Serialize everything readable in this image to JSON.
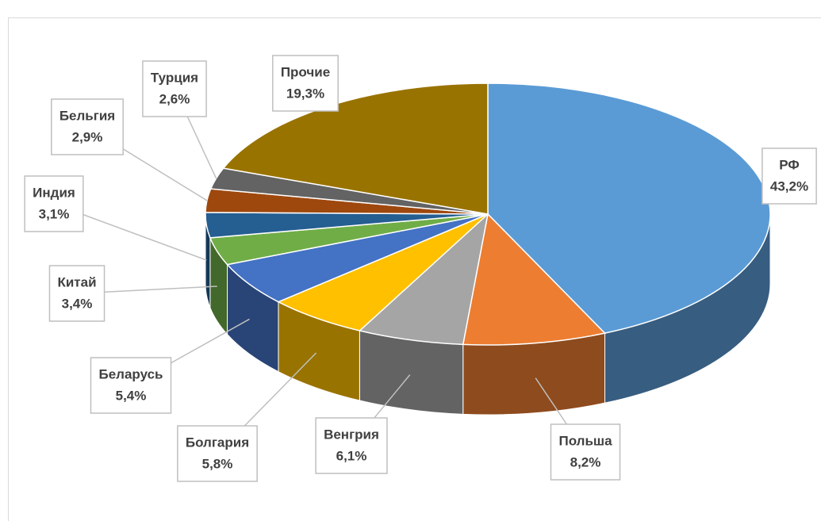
{
  "chart_data": {
    "type": "pie",
    "categories": [
      "РФ",
      "Польша",
      "Венгрия",
      "Болгария",
      "Беларусь",
      "Китай",
      "Индия",
      "Бельгия",
      "Турция",
      "Прочие"
    ],
    "values": [
      43.2,
      8.2,
      6.1,
      5.8,
      5.4,
      3.4,
      3.1,
      2.9,
      2.6,
      19.3
    ],
    "value_labels": [
      "43,2%",
      "8,2%",
      "6,1%",
      "5,8%",
      "5,4%",
      "3,4%",
      "3,1%",
      "2,9%",
      "2,6%",
      "19,3%"
    ],
    "colors": [
      "#5b9bd5",
      "#ed7d31",
      "#a5a5a5",
      "#ffc000",
      "#4472c4",
      "#70ad47",
      "#255e91",
      "#9e480e",
      "#636363",
      "#997300"
    ]
  }
}
